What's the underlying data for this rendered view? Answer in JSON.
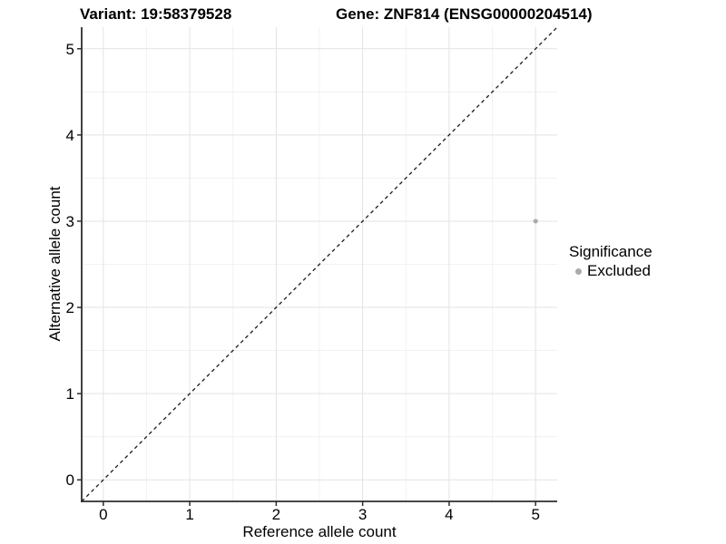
{
  "header": {
    "variant_title": "Variant: 19:58379528",
    "gene_title": "Gene: ZNF814 (ENSG00000204514)"
  },
  "chart_data": {
    "type": "scatter",
    "xlabel": "Reference allele count",
    "ylabel": "Alternative allele count",
    "xlim": [
      -0.25,
      5.25
    ],
    "ylim": [
      -0.25,
      5.25
    ],
    "xticks": [
      0,
      1,
      2,
      3,
      4,
      5
    ],
    "yticks": [
      0,
      1,
      2,
      3,
      4,
      5
    ],
    "minor_grid_step": 0.5,
    "grid": true,
    "identity_line": {
      "style": "dashed",
      "color": "#1a1a1a",
      "from": -0.25,
      "to": 5.25
    },
    "series": [
      {
        "name": "Excluded",
        "color": "#ababab",
        "points": [
          {
            "x": 5,
            "y": 3
          }
        ]
      }
    ],
    "legend": {
      "title": "Significance",
      "position": "right",
      "items": [
        {
          "label": "Excluded",
          "color": "#ababab"
        }
      ]
    }
  },
  "colors": {
    "background": "#ffffff",
    "text": "#000000",
    "grid_major": "#e3e3e3",
    "grid_minor": "#f1f1f1",
    "axis_line": "#2e2e2e",
    "point": "#ababab"
  }
}
